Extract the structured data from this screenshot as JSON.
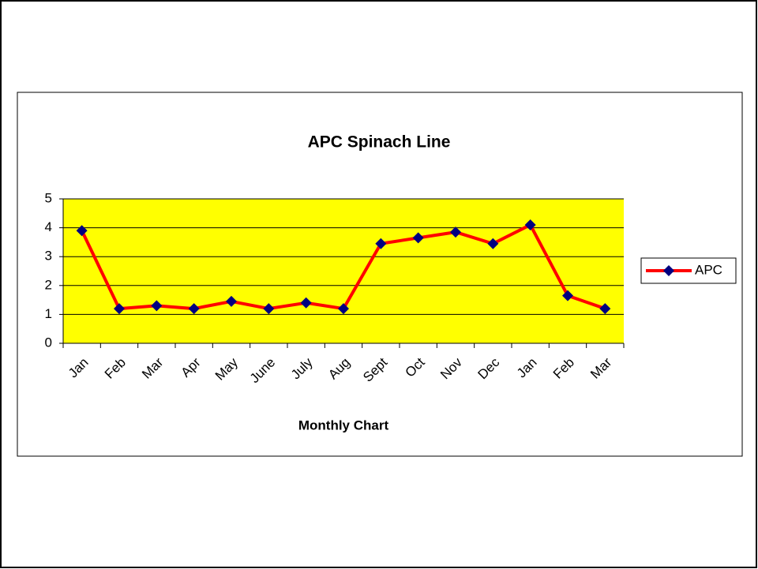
{
  "chart_data": {
    "type": "line",
    "title": "APC Spinach Line",
    "x_label": "Monthly Chart",
    "categories": [
      "Jan",
      "Feb",
      "Mar",
      "Apr",
      "May",
      "June",
      "July",
      "Aug",
      "Sept",
      "Oct",
      "Nov",
      "Dec",
      "Jan",
      "Feb",
      "Mar"
    ],
    "series": [
      {
        "name": "APC",
        "color": "#ff0000",
        "marker_color": "#000080",
        "values": [
          3.9,
          1.2,
          1.3,
          1.2,
          1.45,
          1.2,
          1.4,
          1.2,
          3.45,
          3.65,
          3.85,
          3.45,
          4.1,
          1.65,
          1.2
        ]
      }
    ],
    "ylim": [
      0,
      5
    ],
    "yticks": [
      0,
      1,
      2,
      3,
      4,
      5
    ],
    "grid": true,
    "plot_background": "#ffff00",
    "legend": "right"
  }
}
